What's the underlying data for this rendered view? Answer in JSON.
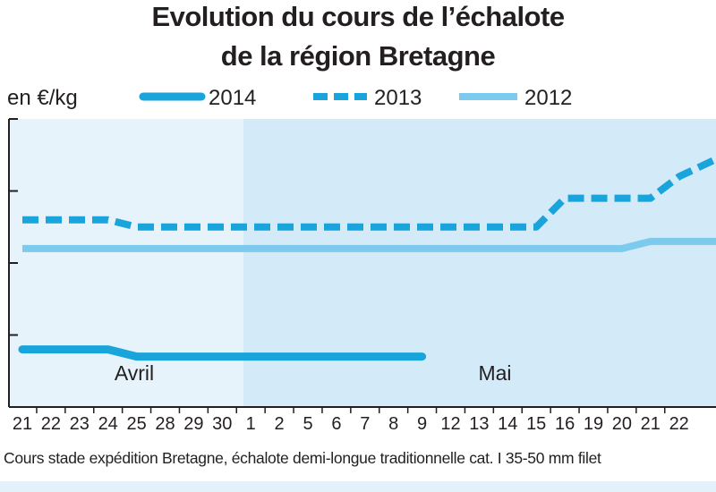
{
  "chart_data": {
    "type": "line",
    "title_line1": "Evolution du cours de l’échalote",
    "title_line2": "de la région Bretagne",
    "ylabel": "en €/kg",
    "xlabel": "",
    "months": [
      "Avril",
      "Mai"
    ],
    "categories": [
      "21",
      "22",
      "23",
      "24",
      "25",
      "28",
      "29",
      "30",
      "1",
      "2",
      "5",
      "6",
      "7",
      "8",
      "9",
      "12",
      "13",
      "14",
      "15",
      "16",
      "19",
      "20",
      "21",
      "22"
    ],
    "legend_position": "top",
    "grid": false,
    "series": [
      {
        "name": "2014",
        "style": "solid-thick",
        "color": "#1aa4dc",
        "values": [
          1.8,
          1.8,
          1.8,
          1.8,
          1.7,
          1.7,
          1.7,
          1.7,
          1.7,
          1.7,
          1.7,
          1.7,
          1.7,
          1.7,
          1.7,
          null,
          null,
          null,
          null,
          null,
          null,
          null,
          null,
          null
        ]
      },
      {
        "name": "2013",
        "style": "dashed",
        "color": "#1aa4dc",
        "values": [
          3.6,
          3.6,
          3.6,
          3.6,
          3.5,
          3.5,
          3.5,
          3.5,
          3.5,
          3.5,
          3.5,
          3.5,
          3.5,
          3.5,
          3.5,
          3.5,
          3.5,
          3.5,
          3.5,
          3.9,
          3.9,
          3.9,
          3.9,
          4.2
        ]
      },
      {
        "name": "2012",
        "style": "solid-light",
        "color": "#7ccbee",
        "values": [
          3.2,
          3.2,
          3.2,
          3.2,
          3.2,
          3.2,
          3.2,
          3.2,
          3.2,
          3.2,
          3.2,
          3.2,
          3.2,
          3.2,
          3.2,
          3.2,
          3.2,
          3.2,
          3.2,
          3.2,
          3.2,
          3.2,
          3.3,
          3.3
        ]
      }
    ],
    "ylim": [
      1.0,
      5.0
    ],
    "footnote": "Cours stade expédition Bretagne, échalote demi-longue traditionnelle cat. I 35-50 mm filet"
  },
  "colors": {
    "panel_april": "#e6f3fb",
    "panel_may": "#d3ebf8",
    "axis": "#231f20"
  }
}
